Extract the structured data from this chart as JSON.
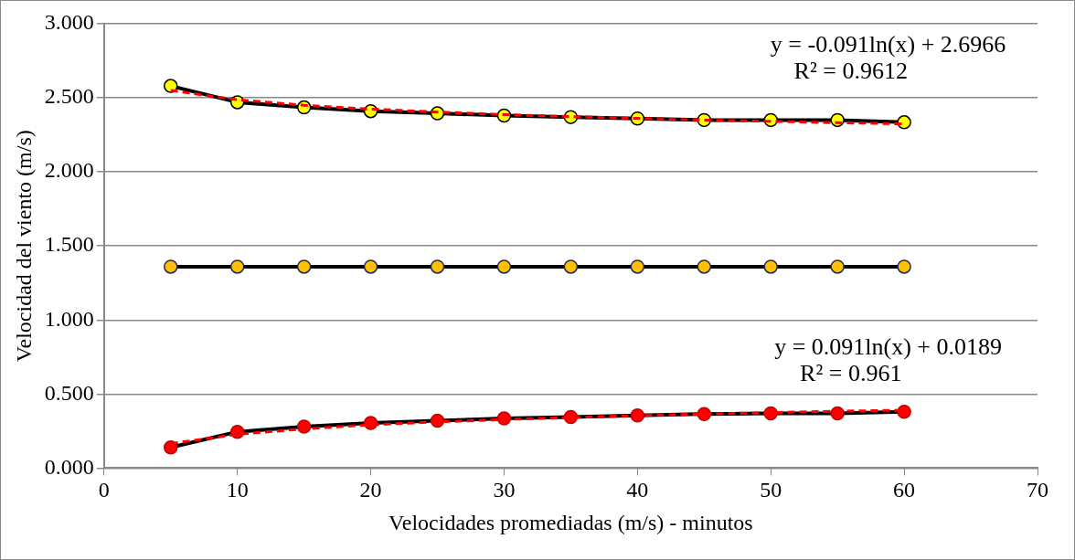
{
  "chart_data": {
    "type": "line",
    "xlabel": "Velocidades promediadas (m/s) - minutos",
    "ylabel": "Velocidad del viento (m/s)",
    "x": [
      5,
      10,
      15,
      20,
      25,
      30,
      35,
      40,
      45,
      50,
      55,
      60
    ],
    "series": [
      {
        "color": "#000000",
        "colors": [
          "#ffff00",
          "#ffff00",
          "#ffff00",
          "#ffff00",
          "#ffff00",
          "#ffff00",
          "#ffff00",
          "#ffff00",
          "#ffff00",
          "#ffff00",
          "#ffff00",
          "#ffff00"
        ],
        "values": [
          2.58,
          2.47,
          2.435,
          2.41,
          2.395,
          2.38,
          2.37,
          2.36,
          2.35,
          2.35,
          2.35,
          2.335
        ]
      },
      {
        "color": "#000000",
        "colors": [
          "#ffc000",
          "#ffc000",
          "#ffc000",
          "#ffc000",
          "#ffc000",
          "#ffc000",
          "#ffc000",
          "#ffc000",
          "#ffc000",
          "#ffc000",
          "#ffc000",
          "#ffc000"
        ],
        "values": [
          1.36,
          1.36,
          1.36,
          1.36,
          1.36,
          1.36,
          1.36,
          1.36,
          1.36,
          1.36,
          1.36,
          1.36
        ]
      },
      {
        "color": "#000000",
        "colors": [
          "#ff0000",
          "#ff0000",
          "#ff0000",
          "#ff0000",
          "#ff0000",
          "#ff0000",
          "#ff0000",
          "#ff0000",
          "#ff0000",
          "#ff0000",
          "#ff0000",
          "#ff0000"
        ],
        "values": [
          0.14,
          0.245,
          0.28,
          0.305,
          0.32,
          0.335,
          0.345,
          0.355,
          0.365,
          0.37,
          0.37,
          0.38
        ]
      },
      {
        "type": "line",
        "color": "#ff0000",
        "line_style": "dashed",
        "marker": "none",
        "values": [
          2.55,
          2.487,
          2.45,
          2.424,
          2.404,
          2.387,
          2.373,
          2.361,
          2.35,
          2.341,
          2.332,
          2.324
        ]
      },
      {
        "type": "line",
        "color": "#ff0000",
        "line_style": "dashed",
        "marker": "none",
        "values": [
          0.165,
          0.228,
          0.265,
          0.292,
          0.312,
          0.328,
          0.342,
          0.355,
          0.365,
          0.375,
          0.384,
          0.391
        ]
      }
    ],
    "xlim": [
      0,
      70
    ],
    "xticks": [
      0,
      10,
      20,
      30,
      40,
      50,
      60,
      70
    ],
    "ylim": [
      0,
      3
    ],
    "yticks": [
      {
        "value": 0,
        "label": "0.000"
      },
      {
        "value": 0.5,
        "label": "0.500"
      },
      {
        "value": 1,
        "label": "1.000"
      },
      {
        "value": 1.5,
        "label": "1.500"
      },
      {
        "value": 2,
        "label": "2.000"
      },
      {
        "value": 2.5,
        "label": "2.500"
      },
      {
        "value": 3,
        "label": "3.000"
      }
    ],
    "annotations": [
      "y = -0.091ln(x) + 2.6966",
      "R² = 0.9612",
      "y = 0.091ln(x) + 0.0189",
      "R² = 0.961"
    ],
    "grid": "y",
    "marker": "circle",
    "line_style": "solid",
    "legend": false
  }
}
